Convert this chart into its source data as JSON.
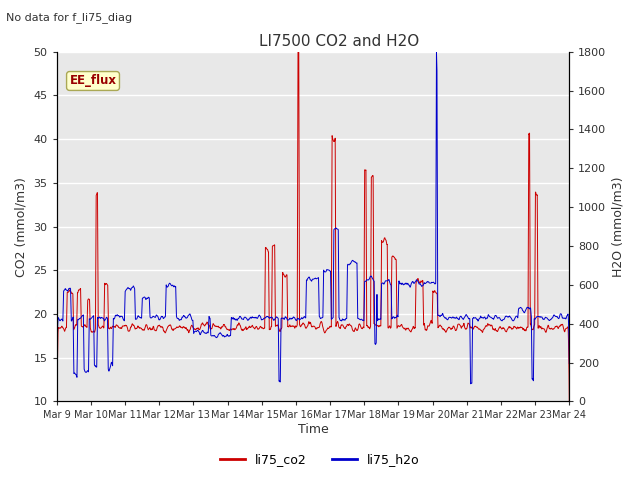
{
  "title": "LI7500 CO2 and H2O",
  "top_left_text": "No data for f_li75_diag",
  "xlabel": "Time",
  "ylabel_left": "CO2 (mmol/m3)",
  "ylabel_right": "H2O (mmol/m3)",
  "ylim_left": [
    10,
    50
  ],
  "ylim_right": [
    0,
    1800
  ],
  "fig_facecolor": "#ffffff",
  "plot_bg_color": "#e8e8e8",
  "co2_color": "#cc0000",
  "h2o_color": "#0000cc",
  "legend_label_co2": "li75_co2",
  "legend_label_h2o": "li75_h2o",
  "ee_flux_label": "EE_flux",
  "ee_flux_bg": "#ffffcc",
  "ee_flux_text_color": "#990000",
  "xtick_labels": [
    "Mar 9",
    "Mar 10",
    "Mar 11",
    "Mar 12",
    "Mar 13",
    "Mar 14",
    "Mar 15",
    "Mar 16",
    "Mar 17",
    "Mar 18",
    "Mar 19",
    "Mar 20",
    "Mar 21",
    "Mar 22",
    "Mar 23",
    "Mar 24"
  ],
  "yticks_left": [
    10,
    15,
    20,
    25,
    30,
    35,
    40,
    45,
    50
  ],
  "yticks_right": [
    0,
    200,
    400,
    600,
    800,
    1000,
    1200,
    1400,
    1600,
    1800
  ],
  "n_points": 2000,
  "seed": 7
}
